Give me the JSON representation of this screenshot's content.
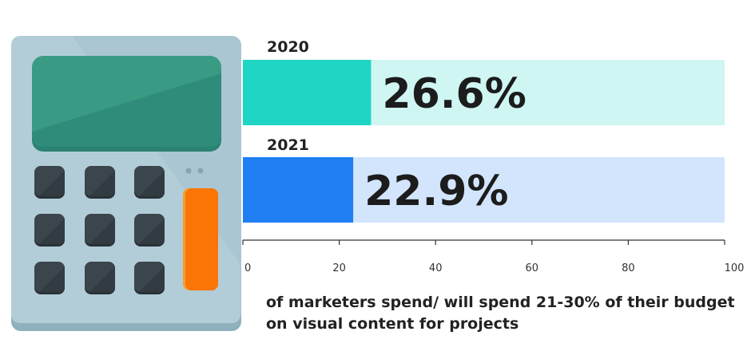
{
  "chart_data": {
    "type": "bar",
    "orientation": "horizontal",
    "categories": [
      "2020",
      "2021"
    ],
    "values": [
      26.6,
      22.9
    ],
    "data_labels": [
      "26.6%",
      "22.9%"
    ],
    "xlim": [
      0,
      100
    ],
    "xticks": [
      "0",
      "20",
      "40",
      "60",
      "80",
      "100"
    ],
    "grid": false,
    "colors": {
      "bars": [
        "#1fd6c4",
        "#1f7ff2"
      ],
      "tracks": [
        "#cff6f2",
        "#d3e5fd"
      ]
    }
  },
  "caption": "of marketers spend/ will spend 21-30% of their budget on visual content for projects",
  "illustration": {
    "icon": "calculator-icon",
    "colors": {
      "body": "#a9c6d2",
      "shadow": "#86a7b4",
      "screen": "#2f8c7a",
      "keys": "#384248",
      "equals_key": "#fb7406"
    }
  }
}
